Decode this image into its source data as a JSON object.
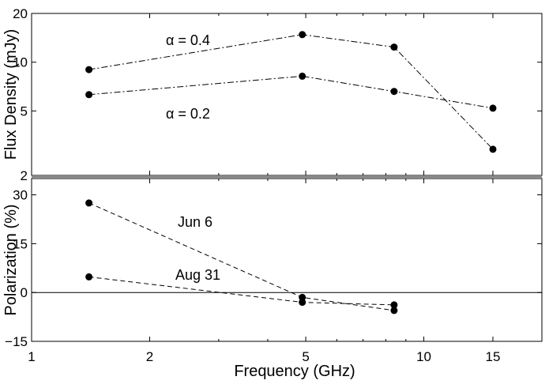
{
  "chart_data": [
    {
      "type": "line",
      "panel": "top",
      "title": "",
      "xlabel": "",
      "ylabel": "Flux Density (mJy)",
      "xscale": "log",
      "yscale": "log",
      "xlim": [
        1,
        20
      ],
      "ylim": [
        2,
        20
      ],
      "yticks": [
        2,
        5,
        10,
        20
      ],
      "ytick_labels": [
        "2",
        "5",
        "10",
        "20"
      ],
      "x": [
        1.4,
        4.9,
        8.4,
        15
      ],
      "series": [
        {
          "name": "α = 0.4",
          "values": [
            9.0,
            14.8,
            12.4,
            2.9
          ]
        },
        {
          "name": "α = 0.2",
          "values": [
            6.3,
            8.2,
            6.6,
            5.2
          ]
        }
      ],
      "annotations": [
        "α = 0.4",
        "α = 0.2"
      ]
    },
    {
      "type": "line",
      "panel": "bottom",
      "title": "",
      "xlabel": "Frequency   (GHz)",
      "ylabel": "Polarization (%)",
      "xscale": "log",
      "yscale": "linear",
      "xlim": [
        1,
        20
      ],
      "ylim": [
        -15,
        35
      ],
      "yticks": [
        -15,
        0,
        15,
        30
      ],
      "ytick_labels": [
        "−15",
        "0",
        "15",
        "30"
      ],
      "xticks": [
        1,
        2,
        5,
        10,
        15
      ],
      "xtick_labels": [
        "1",
        "2",
        "5",
        "10",
        "15"
      ],
      "x": [
        1.4,
        4.9,
        8.4
      ],
      "series": [
        {
          "name": "Jun 6",
          "values": [
            27.5,
            -1.5,
            -5.5
          ]
        },
        {
          "name": "Aug 31",
          "values": [
            4.8,
            -3.0,
            -3.8
          ]
        }
      ],
      "annotations": [
        "Jun 6",
        "Aug 31"
      ]
    }
  ]
}
